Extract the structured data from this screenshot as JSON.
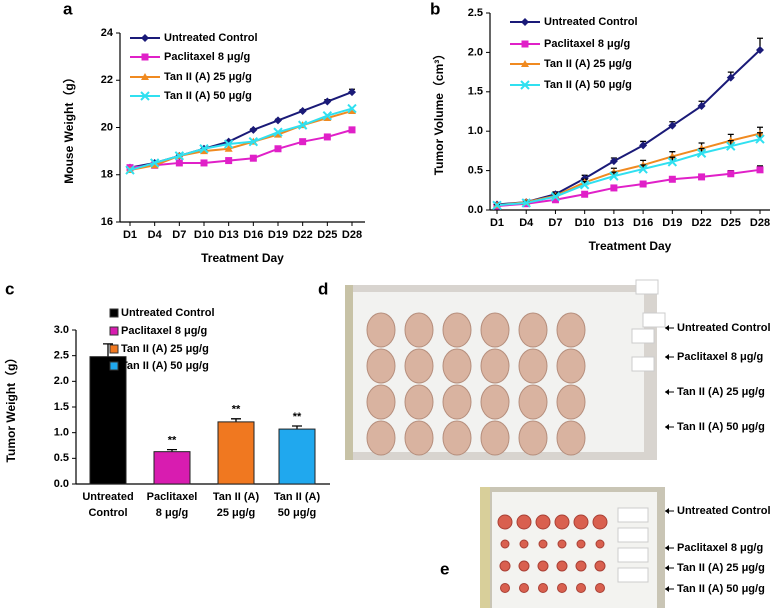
{
  "chart_data": [
    {
      "type": "line",
      "panel": "a",
      "x_label": "Treatment Day",
      "y_label": "Mouse Weight（g）",
      "categories": [
        "D1",
        "D4",
        "D7",
        "D10",
        "D13",
        "D16",
        "D19",
        "D22",
        "D25",
        "D28"
      ],
      "ylim": [
        16,
        24
      ],
      "yticks": [
        16,
        18,
        20,
        22,
        24
      ],
      "series": [
        {
          "name": "Untreated Control",
          "color": "#1a1a78",
          "marker": "diamond",
          "values": [
            18.3,
            18.5,
            18.8,
            19.1,
            19.4,
            19.9,
            20.3,
            20.7,
            21.1,
            21.5
          ],
          "errors": [
            0.05,
            0.05,
            0.05,
            0.05,
            0.05,
            0.05,
            0.05,
            0.05,
            0.08,
            0.12
          ]
        },
        {
          "name": "Paclitaxel 8 μg/g",
          "color": "#e020c8",
          "marker": "square",
          "values": [
            18.3,
            18.4,
            18.5,
            18.5,
            18.6,
            18.7,
            19.1,
            19.4,
            19.6,
            19.9
          ]
        },
        {
          "name": "Tan II (A) 25 μg/g",
          "color": "#f08a20",
          "marker": "triangle",
          "values": [
            18.2,
            18.4,
            18.8,
            19.0,
            19.1,
            19.4,
            19.7,
            20.1,
            20.4,
            20.7
          ]
        },
        {
          "name": "Tan II (A) 50 μg/g",
          "color": "#30e0f0",
          "marker": "x",
          "values": [
            18.2,
            18.5,
            18.8,
            19.1,
            19.3,
            19.4,
            19.8,
            20.1,
            20.5,
            20.8
          ]
        }
      ]
    },
    {
      "type": "line",
      "panel": "b",
      "x_label": "Treatment Day",
      "y_label": "Tumor Volume（cm³）",
      "categories": [
        "D1",
        "D4",
        "D7",
        "D10",
        "D13",
        "D16",
        "D19",
        "D22",
        "D25",
        "D28"
      ],
      "ylim": [
        0,
        2.5
      ],
      "yticks": [
        {
          "value": 0,
          "label": "0.0"
        },
        0.5,
        {
          "value": 1,
          "label": "1.0"
        },
        1.5,
        {
          "value": 2,
          "label": "2.0"
        },
        2.5
      ],
      "series": [
        {
          "name": "Untreated Control",
          "color": "#1a1a78",
          "marker": "diamond",
          "values": [
            0.07,
            0.1,
            0.2,
            0.4,
            0.62,
            0.82,
            1.07,
            1.32,
            1.68,
            2.03
          ],
          "errors": [
            0.01,
            0.02,
            0.03,
            0.04,
            0.04,
            0.05,
            0.05,
            0.06,
            0.07,
            0.15
          ]
        },
        {
          "name": "Paclitaxel 8 μg/g",
          "color": "#e020c8",
          "marker": "square",
          "values": [
            0.05,
            0.08,
            0.13,
            0.2,
            0.28,
            0.33,
            0.39,
            0.42,
            0.46,
            0.51
          ],
          "errors": [
            0.01,
            0.01,
            0.02,
            0.02,
            0.02,
            0.03,
            0.03,
            0.03,
            0.04,
            0.05
          ]
        },
        {
          "name": "Tan II (A) 25 μg/g",
          "color": "#f08a20",
          "marker": "triangle",
          "values": [
            0.06,
            0.1,
            0.18,
            0.35,
            0.48,
            0.57,
            0.68,
            0.78,
            0.88,
            0.97
          ],
          "errors": [
            0.01,
            0.02,
            0.03,
            0.04,
            0.05,
            0.06,
            0.06,
            0.07,
            0.08,
            0.08
          ]
        },
        {
          "name": "Tan II (A) 50 μg/g",
          "color": "#30e0f0",
          "marker": "x",
          "values": [
            0.06,
            0.09,
            0.17,
            0.32,
            0.43,
            0.52,
            0.61,
            0.72,
            0.81,
            0.9
          ],
          "errors": [
            0.01,
            0.02,
            0.03,
            0.04,
            0.05,
            0.05,
            0.06,
            0.06,
            0.07,
            0.08
          ]
        }
      ]
    },
    {
      "type": "bar",
      "panel": "c",
      "y_label": "Tumor Weight（g）",
      "categories": [
        [
          "Untreated",
          "Control"
        ],
        [
          "Paclitaxel",
          "8 μg/g"
        ],
        [
          "Tan II (A)",
          "25 μg/g"
        ],
        [
          "Tan II (A)",
          "50 μg/g"
        ]
      ],
      "legend": [
        "Untreated Control",
        "Paclitaxel 8 μg/g",
        "Tan II (A) 25 μg/g",
        "Tan II (A) 50 μg/g"
      ],
      "colors": [
        "#000000",
        "#d81cb0",
        "#f07820",
        "#20a8ee"
      ],
      "values": [
        2.48,
        0.63,
        1.21,
        1.07
      ],
      "errors": [
        0.25,
        0.04,
        0.06,
        0.06
      ],
      "annotations": [
        null,
        "**",
        "**",
        "**"
      ],
      "ylim": [
        0,
        3
      ],
      "yticks": [
        {
          "value": 0,
          "label": "0.0"
        },
        0.5,
        {
          "value": 1,
          "label": "1.0"
        },
        1.5,
        {
          "value": 2,
          "label": "2.0"
        },
        2.5,
        {
          "value": 3,
          "label": "3.0"
        }
      ]
    }
  ],
  "photos": [
    {
      "panel": "d",
      "labels": [
        "Untreated Control",
        "Paclitaxel 8 μg/g",
        "Tan II (A) 25 μg/g",
        "Tan II (A) 50 μg/g"
      ]
    },
    {
      "panel": "e",
      "labels": [
        "Untreated Control",
        "Paclitaxel 8 μg/g",
        "Tan II (A) 25 μg/g",
        "Tan II (A) 50 μg/g"
      ]
    }
  ]
}
